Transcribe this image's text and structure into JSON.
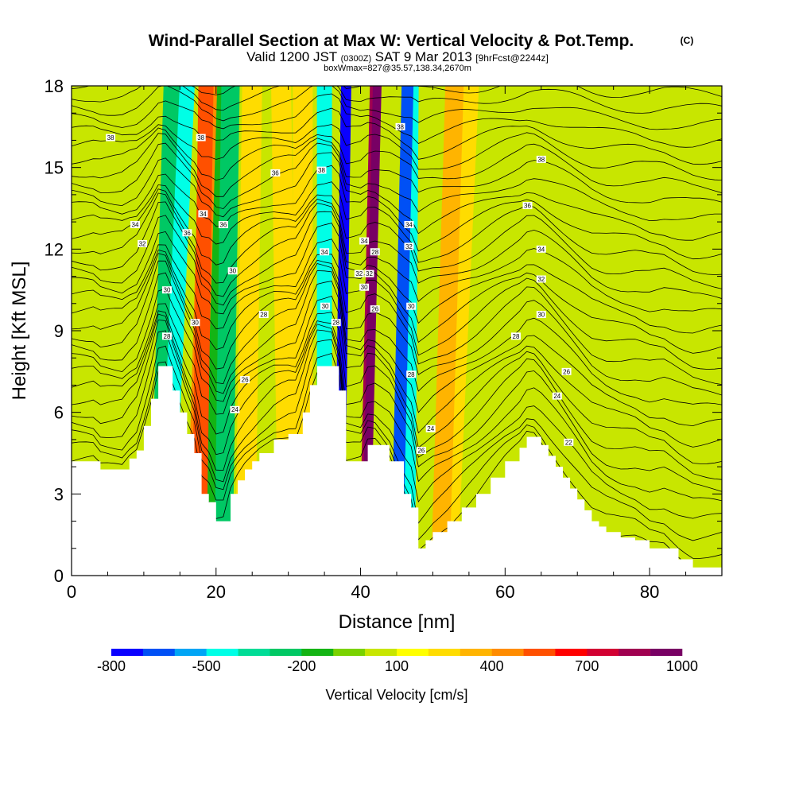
{
  "header": {
    "title": "Wind-Parallel Section at Max W: Vertical Velocity & Pot.Temp.",
    "copyright": "(C)",
    "valid_prefix": "Valid 1200 JST",
    "valid_utc": "(0300Z)",
    "valid_date": "SAT 9 Mar 2013",
    "forecast": "[9hrFcst@2244z]",
    "boxmax": "boxWmax=827@35.57,138.34,2670m"
  },
  "chart_data": {
    "type": "heatmap",
    "xlabel": "Distance [nm]",
    "ylabel": "Height [Kft MSL]",
    "xlim": [
      0,
      90
    ],
    "ylim": [
      0,
      18
    ],
    "x_ticks": [
      "0",
      "20",
      "40",
      "60",
      "80"
    ],
    "x_tick_values": [
      0,
      20,
      40,
      60,
      80
    ],
    "y_ticks": [
      "0",
      "3",
      "6",
      "9",
      "12",
      "15",
      "18"
    ],
    "y_tick_values": [
      0,
      3,
      6,
      9,
      12,
      15,
      18
    ],
    "terrain": {
      "x": [
        0,
        3,
        4,
        7,
        8,
        9,
        10,
        11,
        12,
        13,
        14,
        15,
        16,
        17,
        18,
        19,
        20,
        21,
        22,
        23,
        24,
        25,
        26,
        28,
        30,
        31,
        32,
        33,
        34,
        35,
        36,
        37,
        38,
        39,
        40,
        41,
        42,
        44,
        46,
        47,
        48,
        49,
        50,
        52,
        54,
        56,
        58,
        60,
        62,
        63,
        64,
        65,
        66,
        67,
        68,
        69,
        70,
        71,
        72,
        73,
        74,
        76,
        78,
        80,
        82,
        84,
        86,
        88,
        90
      ],
      "height": [
        4.2,
        4.2,
        3.9,
        3.9,
        4.3,
        4.6,
        5.5,
        6.5,
        7.7,
        7.7,
        6.8,
        6.0,
        5.2,
        4.5,
        3.0,
        2.7,
        2.0,
        2.0,
        3.0,
        3.5,
        3.9,
        4.2,
        4.5,
        5.0,
        5.2,
        5.2,
        6.0,
        7.0,
        7.7,
        7.7,
        7.7,
        6.8,
        4.2,
        4.2,
        4.2,
        4.8,
        4.8,
        4.2,
        3.0,
        2.5,
        1.0,
        1.3,
        1.6,
        2.0,
        2.5,
        3.0,
        3.6,
        4.2,
        4.7,
        5.1,
        5.1,
        4.8,
        4.4,
        4.0,
        3.6,
        3.2,
        2.8,
        2.4,
        2.0,
        1.8,
        1.6,
        1.4,
        1.3,
        1.0,
        1.0,
        0.6,
        0.3,
        0.3,
        0.3
      ]
    },
    "w_bands": [
      {
        "x_bottom": 12,
        "x_top": 14,
        "w": -300
      },
      {
        "x_bottom": 13,
        "x_top": 16,
        "w": -500
      },
      {
        "x_bottom": 17,
        "x_top": 19,
        "w": 400
      },
      {
        "x_bottom": 17.6,
        "x_top": 18.6,
        "w": 500
      },
      {
        "x_bottom": 20,
        "x_top": 20,
        "w": -200
      },
      {
        "x_bottom": 21,
        "x_top": 22,
        "w": -300
      },
      {
        "x_bottom": 24,
        "x_top": 25,
        "w": 200
      },
      {
        "x_bottom": 30,
        "x_top": 29,
        "w": 200
      },
      {
        "x_bottom": 32,
        "x_top": 32,
        "w": 200
      },
      {
        "x_bottom": 35,
        "x_top": 35,
        "w": -500
      },
      {
        "x_bottom": 37,
        "x_top": 38,
        "w": -800
      },
      {
        "x_bottom": 40.5,
        "x_top": 42,
        "w": 800
      },
      {
        "x_bottom": 40.7,
        "x_top": 42.3,
        "w": 900
      },
      {
        "x_bottom": 45,
        "x_top": 46.5,
        "w": -700
      },
      {
        "x_bottom": 46.5,
        "x_top": 47,
        "w": -500
      },
      {
        "x_bottom": 51,
        "x_top": 53,
        "w": 300
      },
      {
        "x_bottom": 52,
        "x_top": 55,
        "w": 200
      }
    ],
    "theta_labels": [
      {
        "x": 5.4,
        "y": 16.1,
        "text": "38"
      },
      {
        "x": 8.8,
        "y": 12.9,
        "text": "34"
      },
      {
        "x": 9.8,
        "y": 12.2,
        "text": "32"
      },
      {
        "x": 13.2,
        "y": 10.5,
        "text": "30"
      },
      {
        "x": 13.2,
        "y": 8.8,
        "text": "28"
      },
      {
        "x": 16.0,
        "y": 12.6,
        "text": "36"
      },
      {
        "x": 17.1,
        "y": 9.3,
        "text": "30"
      },
      {
        "x": 17.9,
        "y": 16.1,
        "text": "38"
      },
      {
        "x": 18.2,
        "y": 13.3,
        "text": "34"
      },
      {
        "x": 21.0,
        "y": 12.9,
        "text": "36"
      },
      {
        "x": 22.3,
        "y": 11.2,
        "text": "30"
      },
      {
        "x": 24.0,
        "y": 7.2,
        "text": "26"
      },
      {
        "x": 22.6,
        "y": 6.1,
        "text": "24"
      },
      {
        "x": 26.6,
        "y": 9.6,
        "text": "28"
      },
      {
        "x": 28.2,
        "y": 14.8,
        "text": "36"
      },
      {
        "x": 34.6,
        "y": 14.9,
        "text": "38"
      },
      {
        "x": 35.0,
        "y": 11.9,
        "text": "34"
      },
      {
        "x": 35.1,
        "y": 9.9,
        "text": "30"
      },
      {
        "x": 36.6,
        "y": 9.3,
        "text": "28"
      },
      {
        "x": 39.8,
        "y": 11.1,
        "text": "32"
      },
      {
        "x": 40.5,
        "y": 10.6,
        "text": "30"
      },
      {
        "x": 40.5,
        "y": 12.3,
        "text": "34"
      },
      {
        "x": 41.2,
        "y": 11.1,
        "text": "32"
      },
      {
        "x": 42.0,
        "y": 11.9,
        "text": "28"
      },
      {
        "x": 42.0,
        "y": 9.8,
        "text": "26"
      },
      {
        "x": 45.5,
        "y": 16.5,
        "text": "38"
      },
      {
        "x": 46.7,
        "y": 12.9,
        "text": "34"
      },
      {
        "x": 46.7,
        "y": 12.1,
        "text": "32"
      },
      {
        "x": 47.0,
        "y": 9.9,
        "text": "30"
      },
      {
        "x": 47.0,
        "y": 7.4,
        "text": "28"
      },
      {
        "x": 49.7,
        "y": 5.4,
        "text": "24"
      },
      {
        "x": 48.4,
        "y": 4.6,
        "text": "26"
      },
      {
        "x": 65.0,
        "y": 15.3,
        "text": "38"
      },
      {
        "x": 63.1,
        "y": 13.6,
        "text": "36"
      },
      {
        "x": 65.0,
        "y": 12.0,
        "text": "34"
      },
      {
        "x": 65.0,
        "y": 10.9,
        "text": "32"
      },
      {
        "x": 65.0,
        "y": 9.6,
        "text": "30"
      },
      {
        "x": 61.5,
        "y": 8.8,
        "text": "28"
      },
      {
        "x": 68.5,
        "y": 7.5,
        "text": "26"
      },
      {
        "x": 67.2,
        "y": 6.6,
        "text": "24"
      },
      {
        "x": 68.8,
        "y": 4.9,
        "text": "22"
      }
    ]
  },
  "colorbar": {
    "label": "Vertical Velocity [cm/s]",
    "tick_labels": [
      "-800",
      "-500",
      "-200",
      "100",
      "400",
      "700",
      "1000"
    ],
    "tick_values": [
      -800,
      -500,
      -200,
      100,
      400,
      700,
      1000
    ],
    "levels": [
      -800,
      -700,
      -600,
      -500,
      -400,
      -300,
      -200,
      -100,
      0,
      100,
      200,
      300,
      400,
      500,
      600,
      700,
      800,
      900,
      1000
    ],
    "colors": [
      "#0a00ff",
      "#0050f5",
      "#00a5f5",
      "#00ffe6",
      "#00dc96",
      "#00c864",
      "#14b414",
      "#7ad200",
      "#c8e600",
      "#ffff00",
      "#ffdc00",
      "#ffb400",
      "#ff8c00",
      "#ff5000",
      "#ff0000",
      "#d20032",
      "#a00050",
      "#780064"
    ]
  }
}
